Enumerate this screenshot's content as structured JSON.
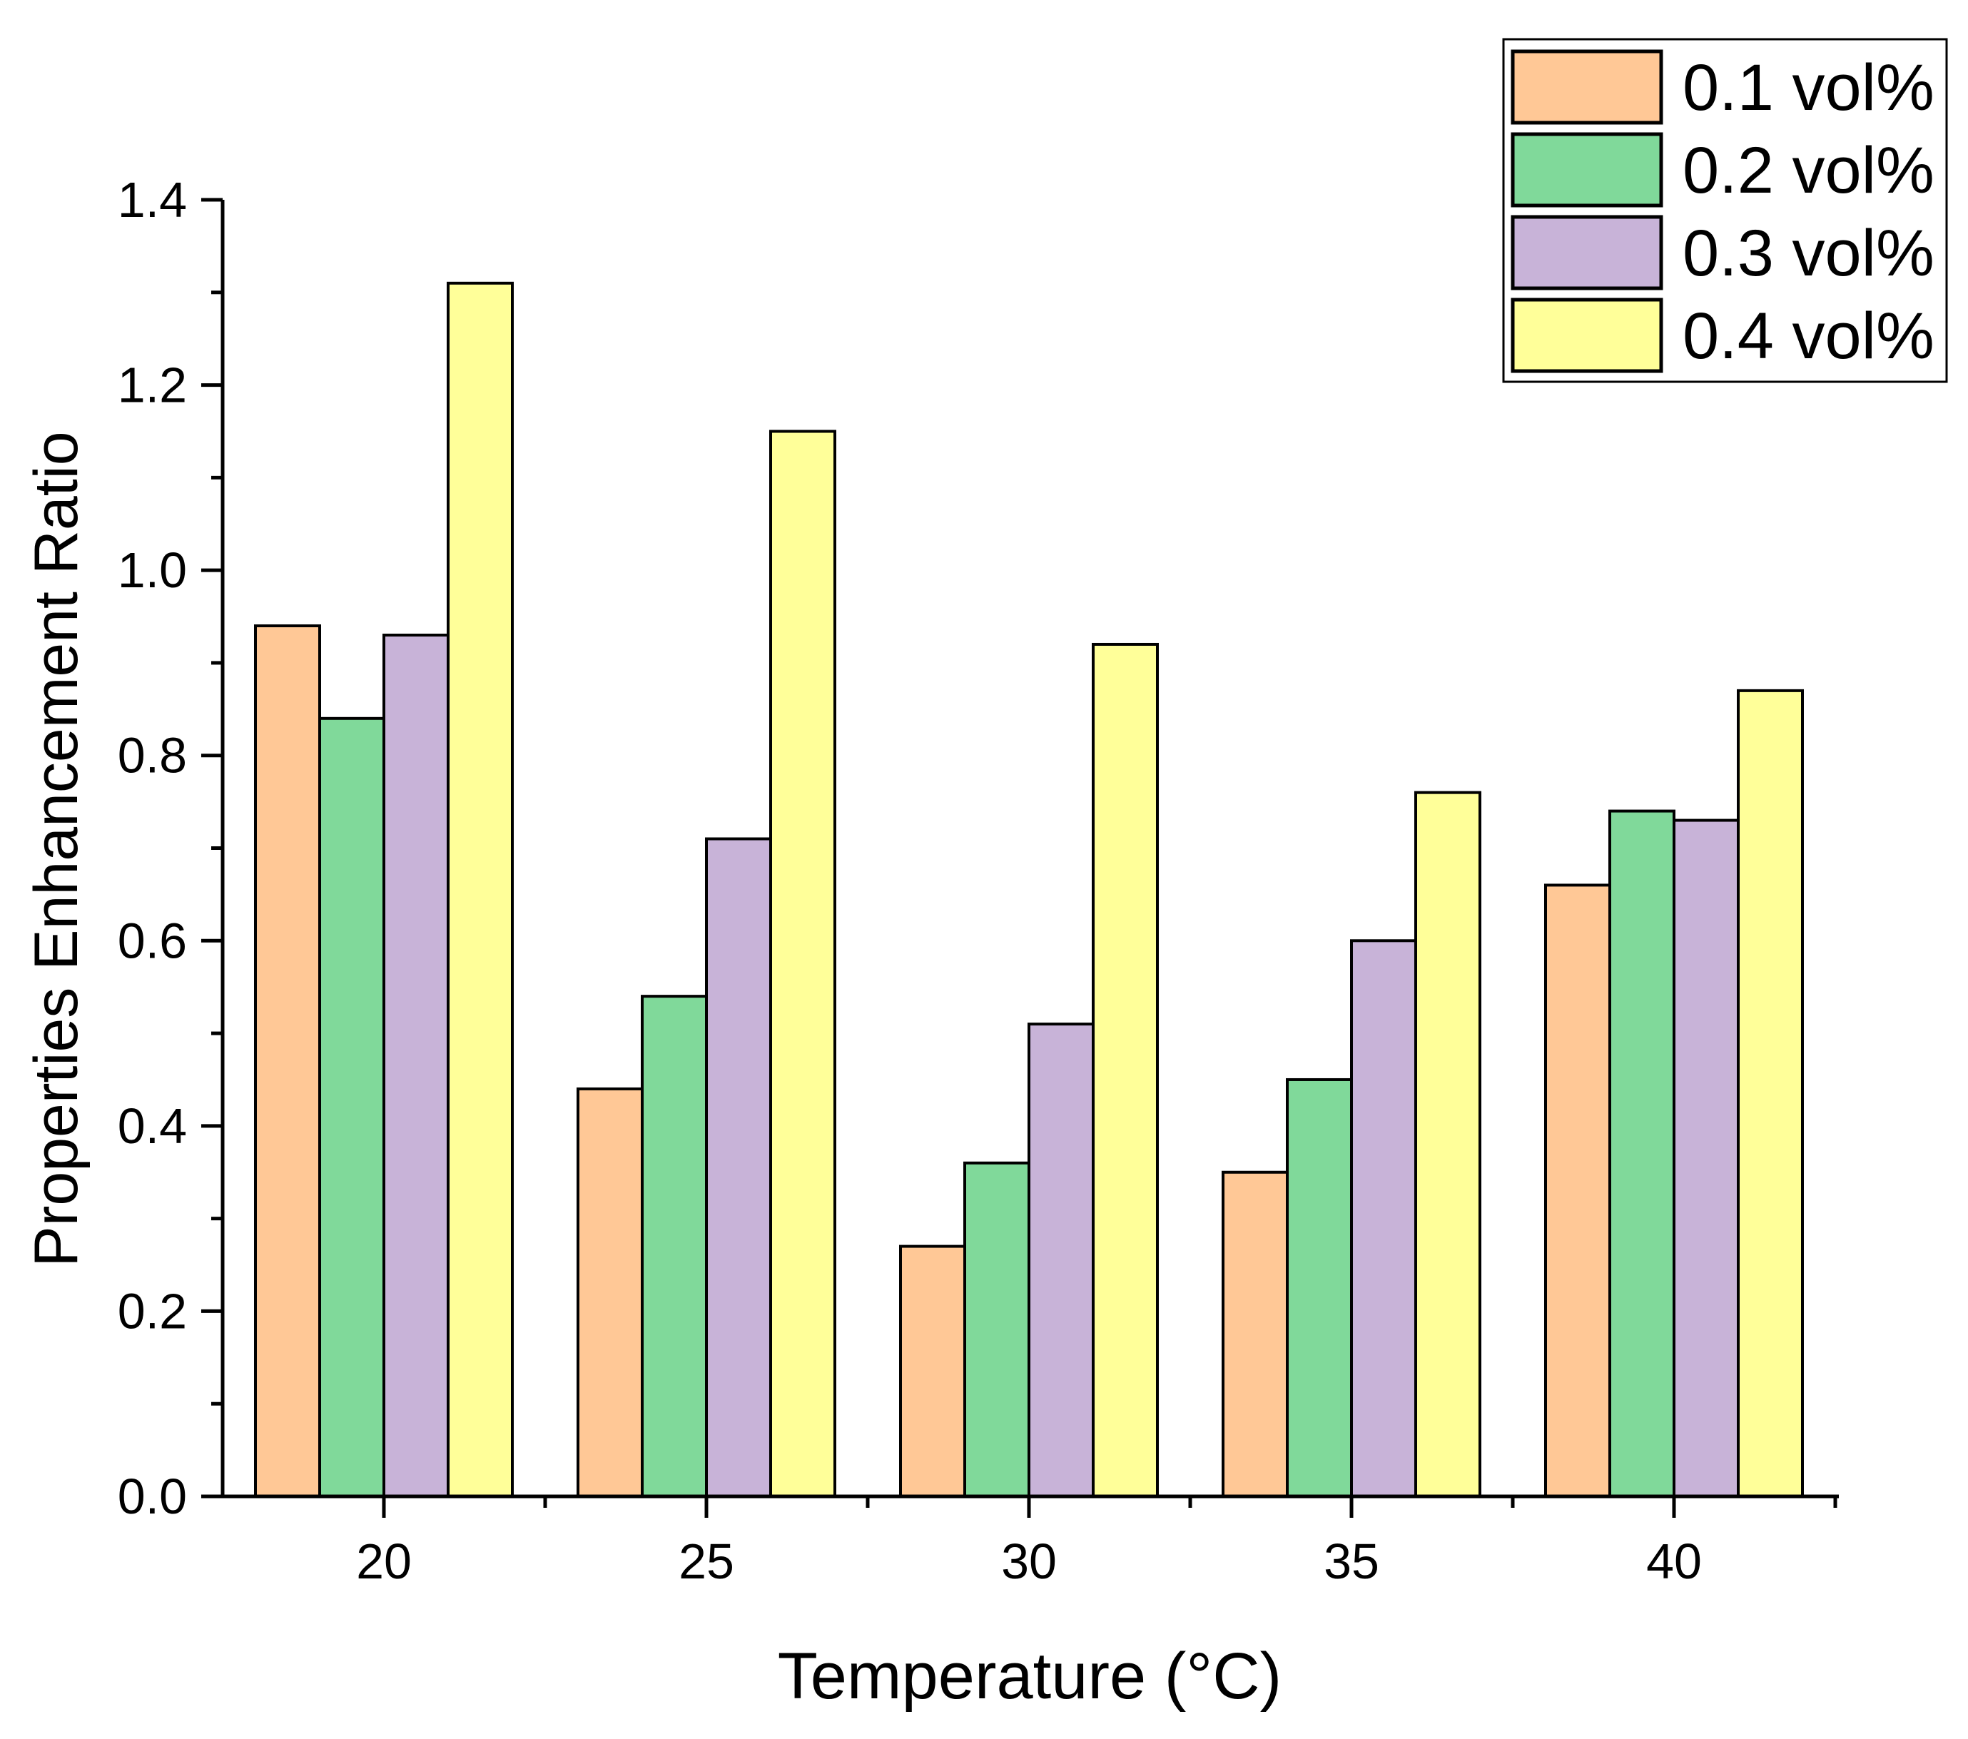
{
  "chart_data": {
    "type": "bar",
    "title": "",
    "xlabel": "Temperature (°C)",
    "ylabel": "Properties Enhancement Ratio",
    "categories": [
      "20",
      "25",
      "30",
      "35",
      "40"
    ],
    "ylim": [
      0,
      1.4
    ],
    "yticks": [
      "0.0",
      "0.2",
      "0.4",
      "0.6",
      "0.8",
      "1.0",
      "1.2",
      "1.4"
    ],
    "grid": false,
    "legend_position": "top-right",
    "series": [
      {
        "name": "0.1 vol%",
        "color": "#FFC896",
        "values": [
          0.94,
          0.44,
          0.27,
          0.35,
          0.66
        ]
      },
      {
        "name": "0.2 vol%",
        "color": "#80D99A",
        "values": [
          0.84,
          0.54,
          0.36,
          0.45,
          0.74
        ]
      },
      {
        "name": "0.3 vol%",
        "color": "#C8B3D8",
        "values": [
          0.93,
          0.71,
          0.51,
          0.6,
          0.73
        ]
      },
      {
        "name": "0.4 vol%",
        "color": "#FFFF99",
        "values": [
          1.31,
          1.15,
          0.92,
          0.76,
          0.87
        ]
      }
    ]
  }
}
